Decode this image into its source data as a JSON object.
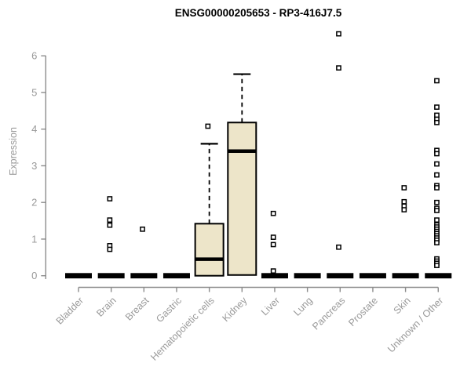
{
  "chart_data": {
    "type": "boxplot",
    "title": "ENSG00000205653 - RP3-416J7.5",
    "ylabel": "Expression",
    "xlabel": "",
    "ylim": [
      0,
      6.8
    ],
    "yticks": [
      0,
      1,
      2,
      3,
      4,
      5,
      6
    ],
    "grid": false,
    "legend": "none",
    "categories": [
      "Bladder",
      "Brain",
      "Breast",
      "Gastric",
      "Hematopoietic cells",
      "Kidney",
      "Liver",
      "Lung",
      "Pancreas",
      "Prostate",
      "Skin",
      "Unknown / Other"
    ],
    "boxes": [
      {
        "category": "Bladder",
        "collapsed": true,
        "median": 0,
        "q1": 0,
        "q3": 0,
        "whisker_low": 0,
        "whisker_high": 0,
        "outliers": []
      },
      {
        "category": "Brain",
        "collapsed": true,
        "median": 0,
        "q1": 0,
        "q3": 0,
        "whisker_low": 0,
        "whisker_high": 0,
        "outliers": [
          2.1,
          1.52,
          1.38,
          0.82,
          0.72
        ]
      },
      {
        "category": "Breast",
        "collapsed": true,
        "median": 0,
        "q1": 0,
        "q3": 0,
        "whisker_low": 0,
        "whisker_high": 0,
        "outliers": [
          1.27
        ]
      },
      {
        "category": "Gastric",
        "collapsed": true,
        "median": 0,
        "q1": 0,
        "q3": 0,
        "whisker_low": 0,
        "whisker_high": 0,
        "outliers": []
      },
      {
        "category": "Hematopoietic cells",
        "collapsed": false,
        "median": 0.45,
        "q1": 0,
        "q3": 1.42,
        "whisker_low": 0,
        "whisker_high": 3.6,
        "outliers": [
          4.08
        ]
      },
      {
        "category": "Kidney",
        "collapsed": false,
        "median": 3.4,
        "q1": 0.02,
        "q3": 4.18,
        "whisker_low": 0.02,
        "whisker_high": 5.5,
        "outliers": []
      },
      {
        "category": "Liver",
        "collapsed": true,
        "median": 0,
        "q1": 0,
        "q3": 0,
        "whisker_low": 0,
        "whisker_high": 0,
        "outliers": [
          1.7,
          1.05,
          0.85,
          0.13
        ]
      },
      {
        "category": "Lung",
        "collapsed": true,
        "median": 0,
        "q1": 0,
        "q3": 0,
        "whisker_low": 0,
        "whisker_high": 0,
        "outliers": []
      },
      {
        "category": "Pancreas",
        "collapsed": true,
        "median": 0,
        "q1": 0,
        "q3": 0,
        "whisker_low": 0,
        "whisker_high": 0,
        "outliers": [
          6.6,
          5.67,
          0.78
        ]
      },
      {
        "category": "Prostate",
        "collapsed": true,
        "median": 0,
        "q1": 0,
        "q3": 0,
        "whisker_low": 0,
        "whisker_high": 0,
        "outliers": []
      },
      {
        "category": "Skin",
        "collapsed": true,
        "median": 0,
        "q1": 0,
        "q3": 0,
        "whisker_low": 0,
        "whisker_high": 0,
        "outliers": [
          2.4,
          2.02,
          1.9,
          1.8
        ]
      },
      {
        "category": "Unknown / Other",
        "collapsed": true,
        "median": 0,
        "q1": 0,
        "q3": 0,
        "whisker_low": 0,
        "whisker_high": 0,
        "outliers": [
          5.32,
          4.6,
          4.38,
          4.27,
          4.18,
          3.42,
          3.33,
          3.05,
          2.75,
          2.46,
          2.4,
          2.0,
          1.84,
          1.78,
          1.52,
          1.39,
          1.33,
          1.27,
          1.21,
          1.15,
          1.09,
          1.03,
          0.97,
          0.9,
          0.46,
          0.4,
          0.34,
          0.28
        ]
      }
    ],
    "colors": {
      "box_fill": "#ede5c9",
      "box_border": "#000000",
      "median": "#000000",
      "outlier_fill": "#ffffff",
      "axis_line": "#8c8c8c",
      "tick_text": "#9a9a9a",
      "title_text": "#000000"
    }
  }
}
